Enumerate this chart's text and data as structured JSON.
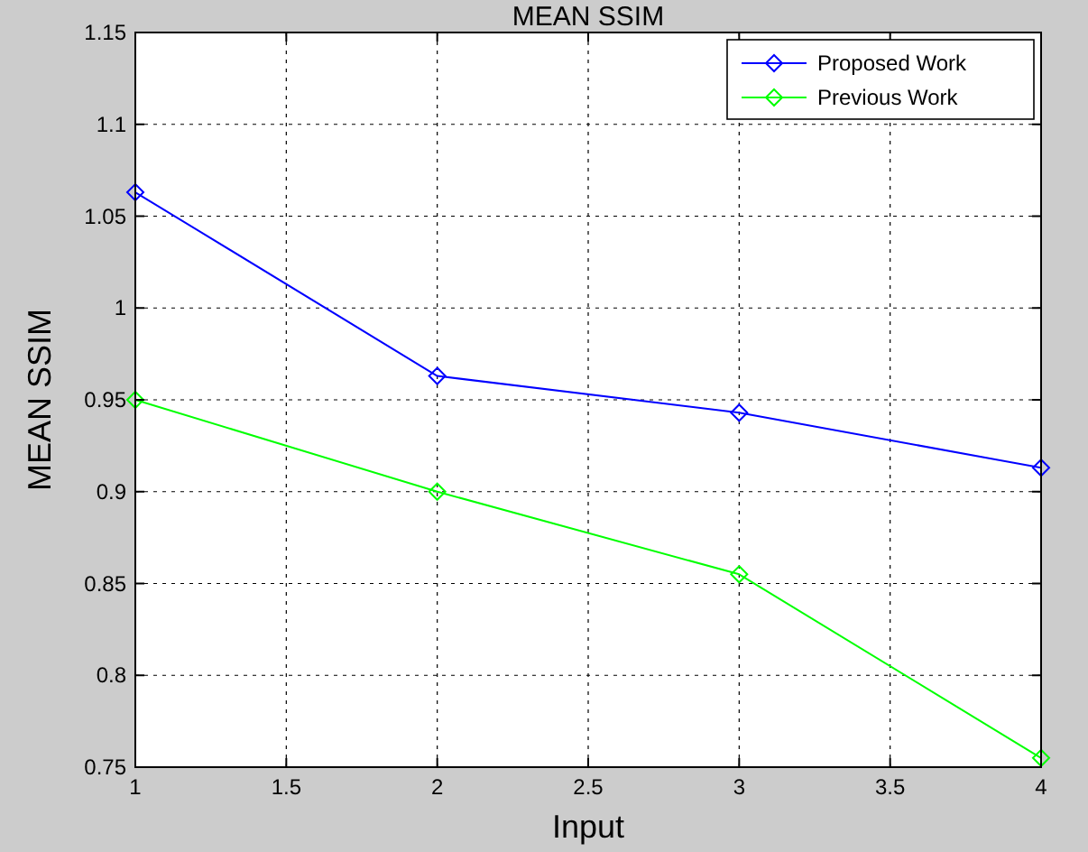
{
  "chart_data": {
    "type": "line",
    "title": "MEAN SSIM",
    "xlabel": "Input",
    "ylabel": "MEAN SSIM",
    "x": [
      1,
      2,
      3,
      4
    ],
    "series": [
      {
        "name": "Proposed Work",
        "color": "#0000ff",
        "values": [
          1.063,
          0.963,
          0.943,
          0.913
        ]
      },
      {
        "name": "Previous Work",
        "color": "#00ff00",
        "values": [
          0.95,
          0.9,
          0.855,
          0.755
        ]
      }
    ],
    "xlim": [
      1,
      4
    ],
    "xticks": [
      1,
      1.5,
      2,
      2.5,
      3,
      3.5,
      4
    ],
    "ylim": [
      0.75,
      1.15
    ],
    "yticks": [
      0.75,
      0.8,
      0.85,
      0.9,
      0.95,
      1,
      1.05,
      1.1,
      1.15
    ],
    "grid": true,
    "legend": "top right",
    "marker": "diamond",
    "line_style": "solid"
  }
}
